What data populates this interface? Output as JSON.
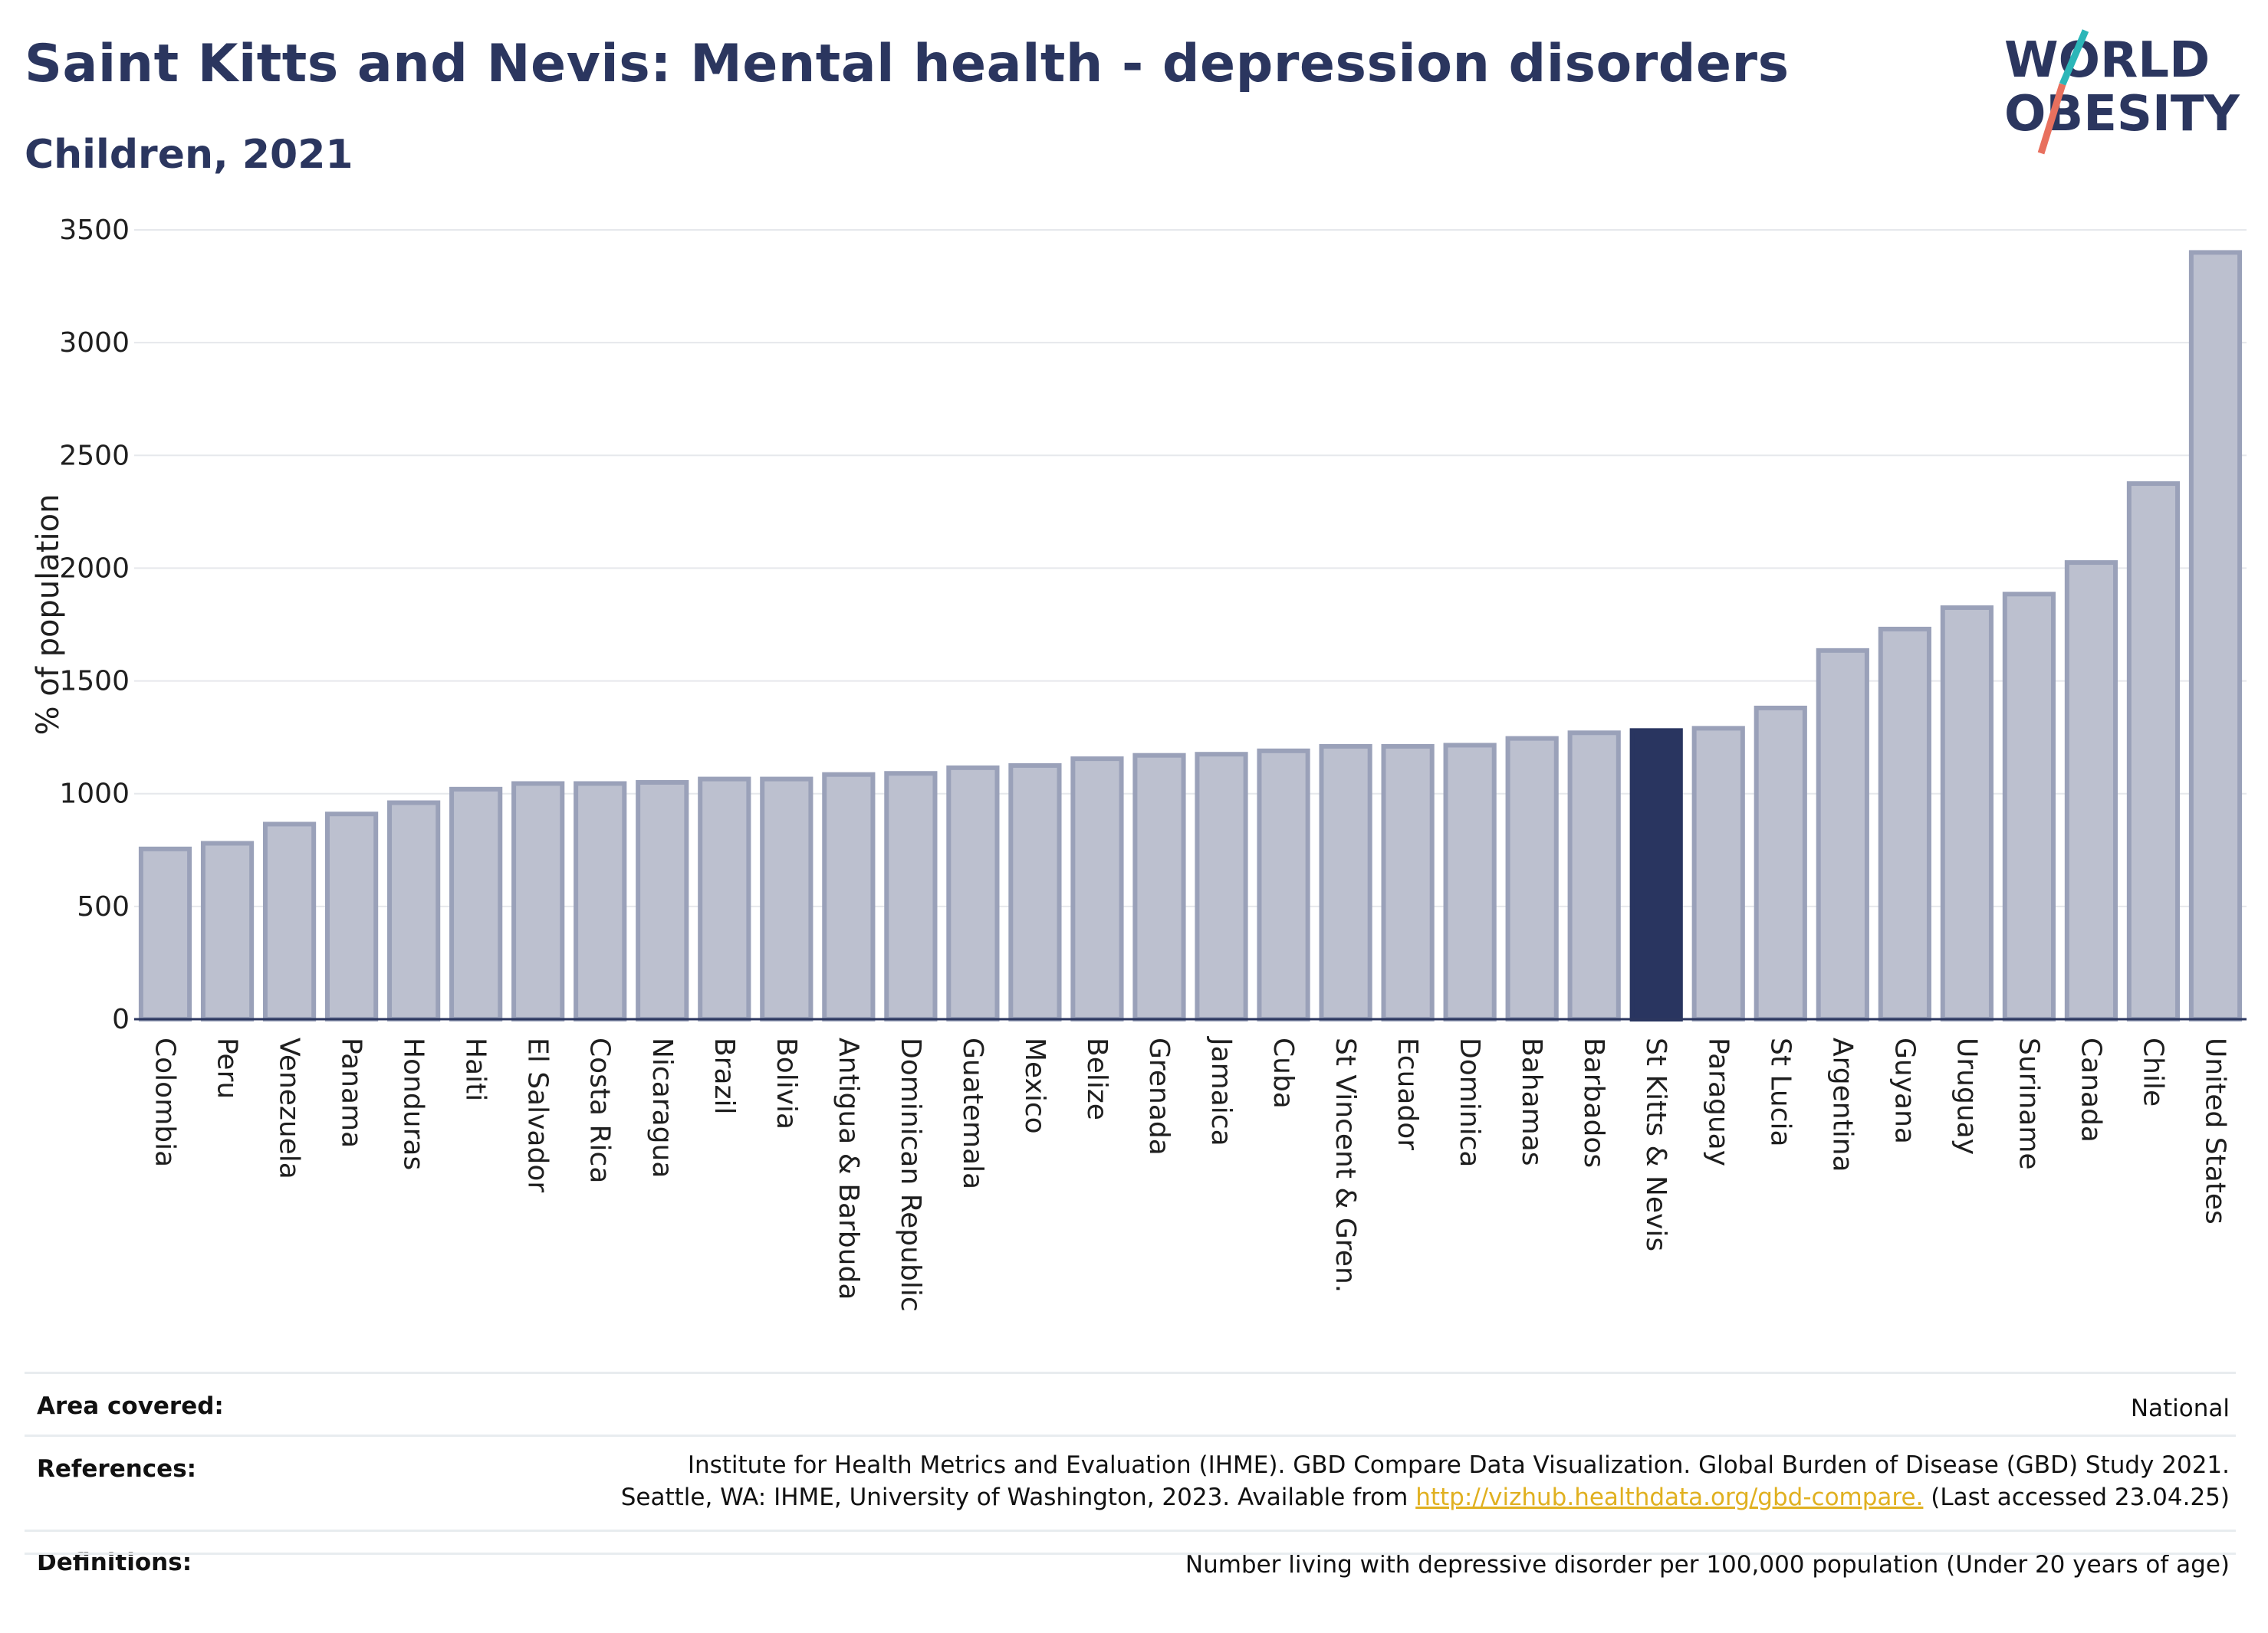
{
  "header": {
    "title": "Saint Kitts and Nevis: Mental health - depression disorders",
    "subtitle": "Children, 2021",
    "logo_text_line1": "WORLD",
    "logo_text_line2": "OBESITY"
  },
  "colors": {
    "bar": "#bcc0cf",
    "bar_stroke": "#9aa1b9",
    "highlight": "#293560",
    "text": "#2b365f",
    "link": "#e0b020",
    "logo_teal": "#2bb6b8",
    "logo_coral": "#e8705e"
  },
  "chart_data": {
    "type": "bar",
    "title": "Saint Kitts and Nevis: Mental health - depression disorders",
    "subtitle": "Children, 2021",
    "xlabel": "",
    "ylabel": "% of population",
    "ylim": [
      0,
      3500
    ],
    "yticks": [
      0,
      500,
      1000,
      1500,
      2000,
      2500,
      3000,
      3500
    ],
    "grid": true,
    "highlight": "St Kitts & Nevis",
    "categories": [
      "Colombia",
      "Peru",
      "Venezuela",
      "Panama",
      "Honduras",
      "Haiti",
      "El Salvador",
      "Costa Rica",
      "Nicaragua",
      "Brazil",
      "Bolivia",
      "Antigua & Barbuda",
      "Dominican Republic",
      "Guatemala",
      "Mexico",
      "Belize",
      "Grenada",
      "Jamaica",
      "Cuba",
      "St Vincent & Gren.",
      "Ecuador",
      "Dominica",
      "Bahamas",
      "Barbados",
      "St Kitts & Nevis",
      "Paraguay",
      "St Lucia",
      "Argentina",
      "Guyana",
      "Uruguay",
      "Suriname",
      "Canada",
      "Chile",
      "United States"
    ],
    "values": [
      755,
      780,
      865,
      910,
      960,
      1020,
      1045,
      1045,
      1050,
      1065,
      1065,
      1085,
      1090,
      1115,
      1125,
      1155,
      1170,
      1175,
      1190,
      1210,
      1210,
      1215,
      1245,
      1270,
      1280,
      1290,
      1380,
      1635,
      1730,
      1825,
      1885,
      2025,
      2375,
      3400
    ]
  },
  "footer": {
    "area_label": "Area covered:",
    "area_value": "National",
    "references_label": "References:",
    "references_line1": "Institute for Health Metrics and Evaluation (IHME). GBD Compare Data Visualization. Global Burden of Disease (GBD) Study 2021.",
    "references_line2_pre": "Seattle, WA: IHME, University of Washington, 2023. Available from ",
    "references_link": "http://vizhub.healthdata.org/gbd-compare.",
    "references_line2_post": " (Last accessed 23.04.25)",
    "definitions_label": "Definitions:",
    "definitions_value": "Number living with depressive disorder per 100,000 population (Under 20 years of age)"
  }
}
